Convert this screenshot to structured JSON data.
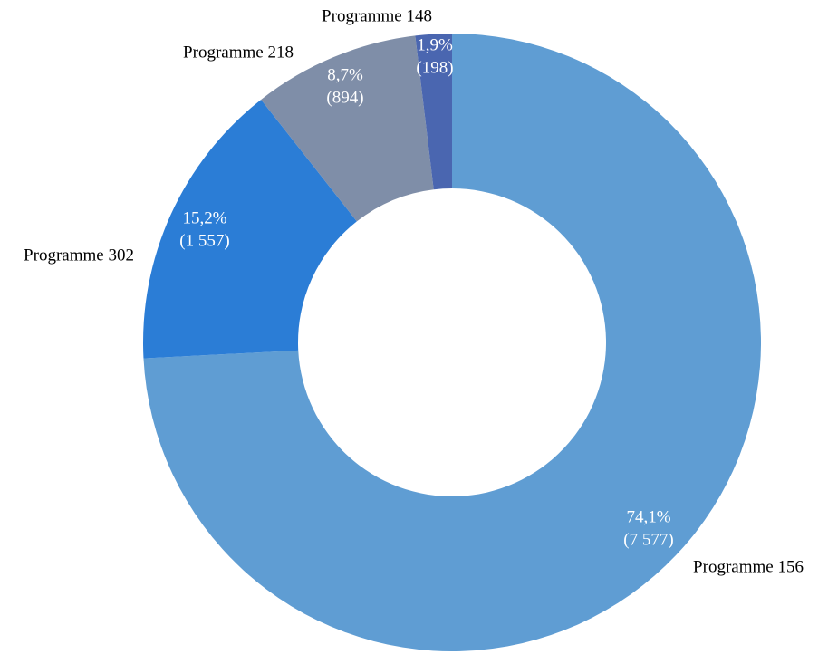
{
  "chart_data": {
    "type": "donut",
    "categories": [
      "Programme 156",
      "Programme 302",
      "Programme 218",
      "Programme 148"
    ],
    "values": [
      74.1,
      15.2,
      8.7,
      1.9
    ],
    "value_labels": [
      "74,1%",
      "15,2%",
      "8,7%",
      "1,9%"
    ],
    "counts": [
      7577,
      1557,
      894,
      198
    ],
    "count_labels": [
      "(7 577)",
      "(1 557)",
      "(894)",
      "(198)"
    ],
    "colors": [
      "#5f9dd3",
      "#2b7dd6",
      "#7f8ea8",
      "#4a66b0"
    ]
  }
}
